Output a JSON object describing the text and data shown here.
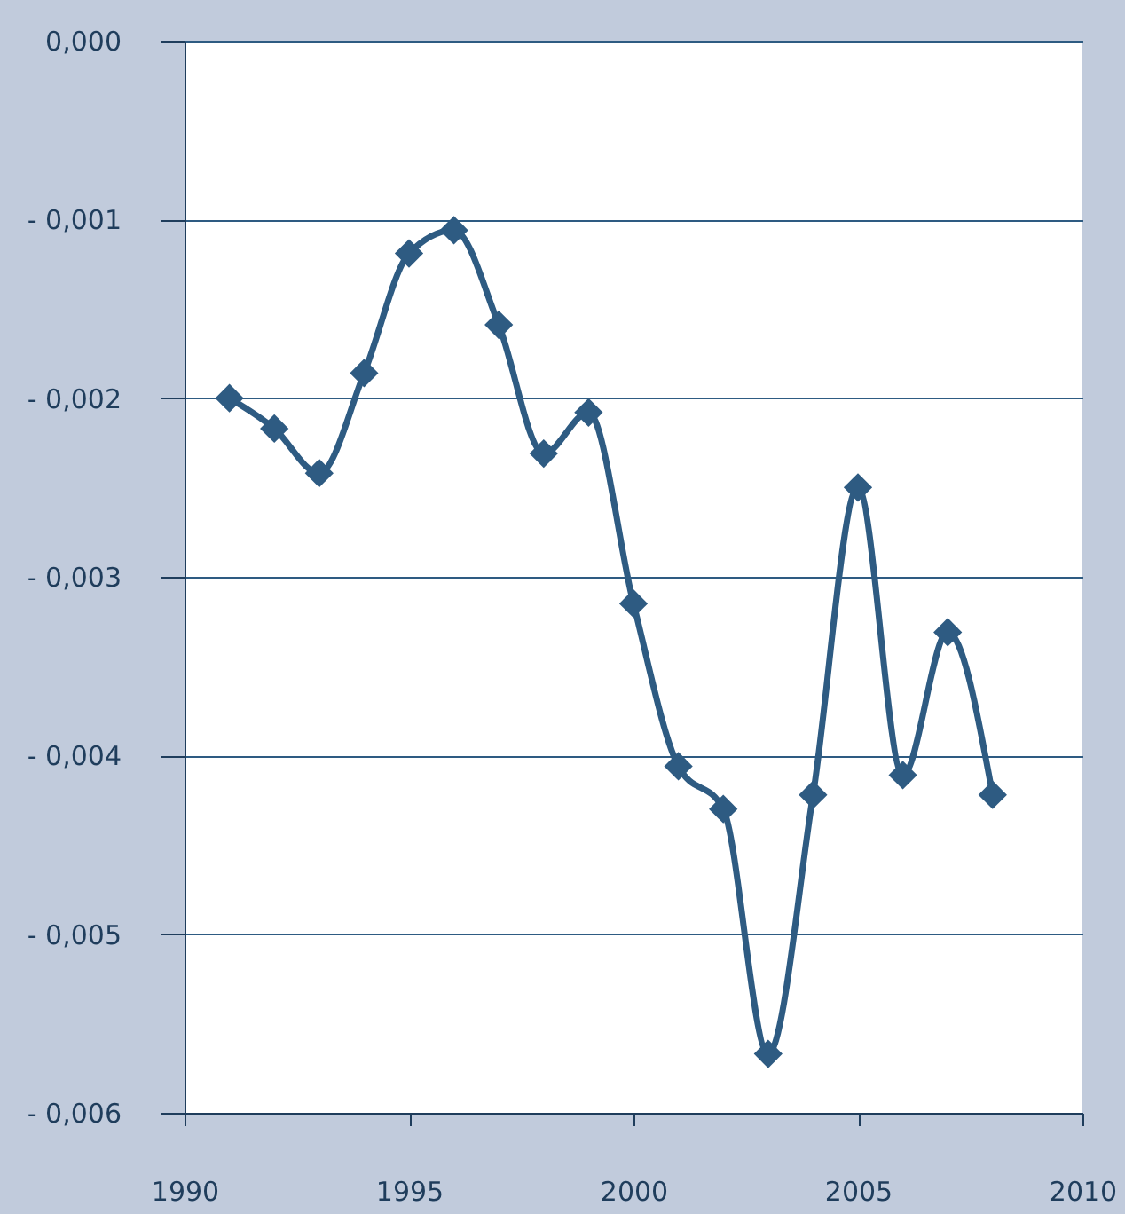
{
  "chart_data": {
    "type": "line",
    "x": [
      1991,
      1992,
      1993,
      1994,
      1995,
      1996,
      1997,
      1998,
      1999,
      2000,
      2001,
      2002,
      2003,
      2004,
      2005,
      2006,
      2007,
      2008
    ],
    "series": [
      {
        "color": "#2e5b82",
        "values": [
          -0.002,
          -0.00217,
          -0.00242,
          -0.00186,
          -0.00119,
          -0.00106,
          -0.00159,
          -0.00231,
          -0.00208,
          -0.00315,
          -0.00406,
          -0.0043,
          -0.00567,
          -0.00422,
          -0.0025,
          -0.00411,
          -0.00331,
          -0.00422
        ]
      }
    ],
    "xlim": [
      1990,
      2010
    ],
    "xticks": [
      1990,
      1995,
      2000,
      2005,
      2010
    ],
    "ylim": [
      -0.006,
      0
    ],
    "yticks": [
      {
        "value": 0,
        "label": "0,000"
      },
      {
        "value": -0.001,
        "label": "- 0,001"
      },
      {
        "value": -0.002,
        "label": "- 0,002"
      },
      {
        "value": -0.003,
        "label": "- 0,003"
      },
      {
        "value": -0.004,
        "label": "- 0,004"
      },
      {
        "value": -0.005,
        "label": "- 0,005"
      },
      {
        "value": -0.006,
        "label": "- 0,006"
      }
    ],
    "grid": "y",
    "marker": "diamond",
    "line_style": "solid",
    "legend": false
  }
}
